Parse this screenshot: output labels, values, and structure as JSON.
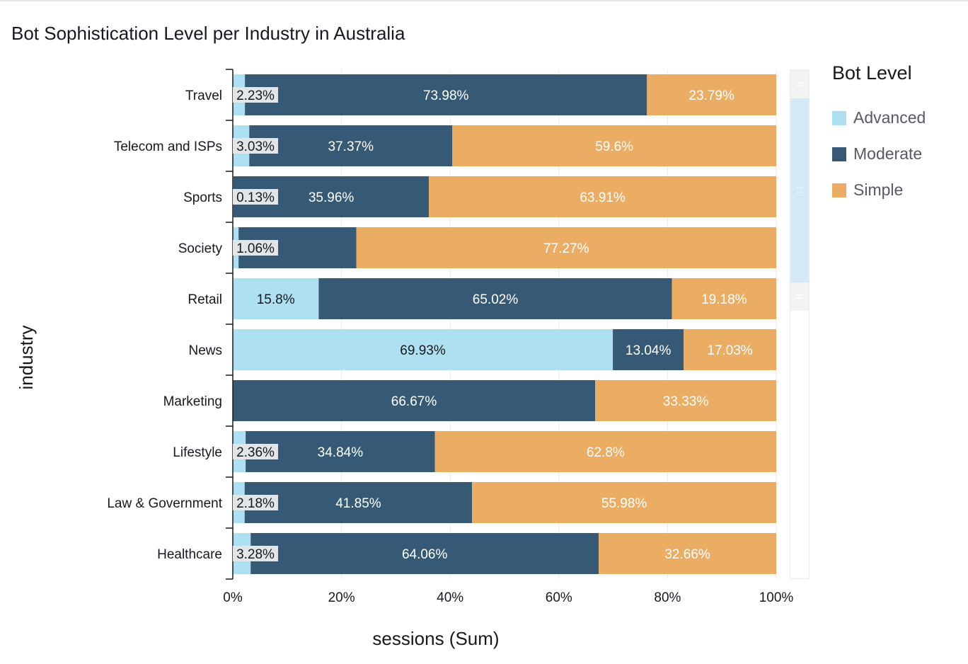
{
  "chart_data": {
    "type": "bar",
    "orientation": "horizontal",
    "stacked": "percent",
    "title": "Bot Sophistication Level per Industry in Australia",
    "xlabel": "sessions (Sum)",
    "ylabel": "industry",
    "xlim": [
      0,
      100
    ],
    "x_ticks": [
      "0%",
      "20%",
      "40%",
      "60%",
      "80%",
      "100%"
    ],
    "grid": true,
    "legend_position": "right",
    "legend_title": "Bot Level",
    "categories": [
      "Travel",
      "Telecom and ISPs",
      "Sports",
      "Society",
      "Retail",
      "News",
      "Marketing",
      "Lifestyle",
      "Law & Government",
      "Healthcare"
    ],
    "series": [
      {
        "name": "Advanced",
        "color": "#ade0f0",
        "label_color": "#16191f",
        "values": [
          2.23,
          3.03,
          0.13,
          1.06,
          15.8,
          69.93,
          0,
          2.36,
          2.18,
          3.28
        ],
        "labels": [
          "2.23%",
          "3.03%",
          "0.13%",
          "1.06%",
          "15.8%",
          "69.93%",
          "",
          "2.36%",
          "2.18%",
          "3.28%"
        ]
      },
      {
        "name": "Moderate",
        "color": "#365a75",
        "label_color": "#ffffff",
        "values": [
          73.98,
          37.37,
          35.96,
          21.67,
          65.02,
          13.04,
          66.67,
          34.84,
          41.85,
          64.06
        ],
        "labels": [
          "73.98%",
          "37.37%",
          "35.96%",
          "",
          "65.02%",
          "13.04%",
          "66.67%",
          "34.84%",
          "41.85%",
          "64.06%"
        ]
      },
      {
        "name": "Simple",
        "color": "#ebac64",
        "label_color": "#ffffff",
        "values": [
          23.79,
          59.6,
          63.91,
          77.27,
          19.18,
          17.03,
          33.33,
          62.8,
          55.98,
          32.66
        ],
        "labels": [
          "23.79%",
          "59.6%",
          "63.91%",
          "77.27%",
          "19.18%",
          "17.03%",
          "33.33%",
          "62.8%",
          "55.98%",
          "32.66%"
        ]
      }
    ]
  }
}
